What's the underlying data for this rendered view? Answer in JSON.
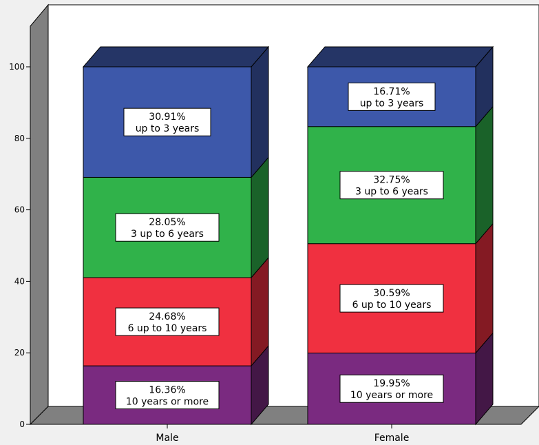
{
  "chart_data": {
    "type": "bar",
    "stacked": true,
    "three_d": true,
    "categories": [
      "Male",
      "Female"
    ],
    "series": [
      {
        "name": "10 years or more",
        "values": [
          16.36,
          19.95
        ],
        "labels": [
          "16.36%",
          "19.95%"
        ],
        "color": "#7a2a80"
      },
      {
        "name": "6 up to 10 years",
        "values": [
          24.68,
          30.59
        ],
        "labels": [
          "24.68%",
          "30.59%"
        ],
        "color": "#f03040"
      },
      {
        "name": "3 up to 6 years",
        "values": [
          28.05,
          32.75
        ],
        "labels": [
          "28.05%",
          "32.75%"
        ],
        "color": "#30b24a"
      },
      {
        "name": "up to 3 years",
        "values": [
          30.91,
          16.71
        ],
        "labels": [
          "30.91%",
          "16.71%"
        ],
        "color": "#3d58aa"
      }
    ],
    "ylim": [
      0,
      100
    ],
    "yticks": [
      "0",
      "20",
      "40",
      "60",
      "80",
      "100"
    ],
    "title": "",
    "xlabel": "",
    "ylabel": "",
    "grid": false,
    "legend": "none",
    "colors": {
      "background": "#f0f0f0",
      "wall": "#ffffff",
      "wall_side": "#808080",
      "floor": "#808080"
    }
  }
}
